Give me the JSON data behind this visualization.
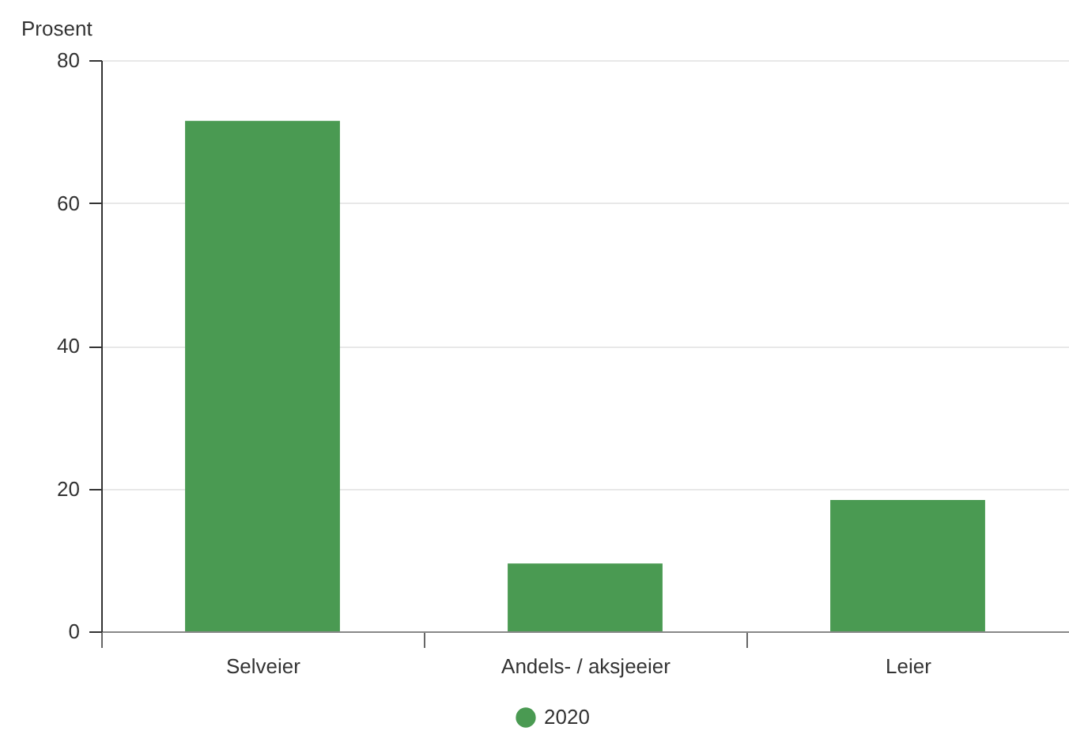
{
  "chart_data": {
    "type": "bar",
    "categories": [
      "Selveier",
      "Andels- / aksjeeier",
      "Leier"
    ],
    "series": [
      {
        "name": "2020",
        "color": "#4a9a52",
        "values": [
          71.5,
          9.5,
          18.4
        ]
      }
    ],
    "ylabel": "Prosent",
    "ylim": [
      0,
      80
    ],
    "yticks": [
      0,
      20,
      40,
      60,
      80
    ],
    "grid": "y",
    "legend": "bottom"
  }
}
